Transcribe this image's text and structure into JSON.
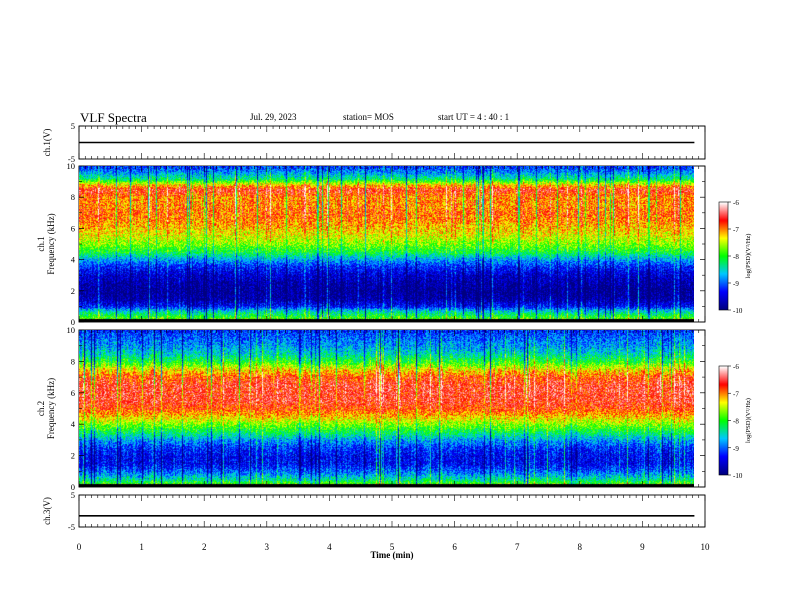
{
  "header": {
    "title": "VLF Spectra",
    "date": "Jul. 29, 2023",
    "station": "station= MOS",
    "start_ut": "start UT =  4 : 40 : 1"
  },
  "colors": {
    "scale": [
      "#000080",
      "#0000ff",
      "#00c8ff",
      "#00ff00",
      "#ffff00",
      "#ff0000",
      "#ffffff"
    ]
  },
  "chart_data": [
    {
      "type": "line",
      "panel": "ch1-voltage",
      "ylabel": "ch.1(V)",
      "ylim": [
        -5,
        5
      ],
      "y_ticks": [
        "5",
        "-5"
      ],
      "xlim": [
        0,
        10
      ],
      "series": [
        {
          "x": [
            0,
            9.83
          ],
          "y": [
            0,
            0
          ]
        }
      ]
    },
    {
      "type": "heatmap",
      "panel": "ch1-spectrogram",
      "ylabel": "ch.1\nFrequency (kHz)",
      "ylim": [
        0,
        10
      ],
      "y_ticks": [
        "0",
        "2",
        "4",
        "6",
        "8",
        "10"
      ],
      "xlim": [
        0,
        10
      ],
      "colorbar": {
        "label": "log(PSD)(V²/Hz)",
        "range": [
          -10,
          -6
        ],
        "ticks": [
          "-6",
          "-7",
          "-8",
          "-9",
          "-10"
        ]
      },
      "profile": {
        "freq_khz": [
          0.1,
          0.5,
          0.8,
          1.0,
          1.5,
          2.0,
          2.5,
          3.0,
          3.5,
          4.0,
          4.5,
          5.0,
          5.5,
          6.0,
          6.5,
          7.0,
          7.5,
          8.0,
          8.5,
          8.8,
          9.2,
          9.6,
          10.0
        ],
        "log_psd": [
          -7.6,
          -8.2,
          -8.7,
          -9.3,
          -9.8,
          -9.9,
          -9.8,
          -9.6,
          -9.3,
          -8.8,
          -8.1,
          -7.7,
          -7.4,
          -7.2,
          -7.0,
          -6.9,
          -7.0,
          -7.0,
          -6.6,
          -7.2,
          -8.3,
          -8.8,
          -9.2
        ]
      }
    },
    {
      "type": "heatmap",
      "panel": "ch2-spectrogram",
      "ylabel": "ch.2\nFrequency (kHz)",
      "ylim": [
        0,
        10
      ],
      "y_ticks": [
        "0",
        "2",
        "4",
        "6",
        "8",
        "10"
      ],
      "xlim": [
        0,
        10
      ],
      "colorbar": {
        "label": "log(PSD)(V²/Hz)",
        "range": [
          -10,
          -6
        ],
        "ticks": [
          "-6",
          "-7",
          "-8",
          "-9",
          "-10"
        ]
      },
      "profile": {
        "freq_khz": [
          0.1,
          0.5,
          1.0,
          1.5,
          2.0,
          2.5,
          3.0,
          3.5,
          4.0,
          4.5,
          5.0,
          5.5,
          6.0,
          6.5,
          7.0,
          7.5,
          8.0,
          8.5,
          9.0,
          9.5,
          10.0
        ],
        "log_psd": [
          -7.6,
          -8.4,
          -9.0,
          -9.4,
          -9.4,
          -9.2,
          -8.8,
          -8.2,
          -7.7,
          -7.2,
          -6.8,
          -6.6,
          -6.6,
          -6.6,
          -6.8,
          -7.3,
          -8.0,
          -8.5,
          -8.8,
          -9.0,
          -9.2
        ]
      }
    },
    {
      "type": "line",
      "panel": "ch3-voltage",
      "ylabel": "ch.3(V)",
      "ylim": [
        -5,
        5
      ],
      "y_ticks": [
        "5",
        "-5"
      ],
      "xlim": [
        0,
        10
      ],
      "xlabel": "Time (min)",
      "x_ticks": [
        "0",
        "1",
        "2",
        "3",
        "4",
        "5",
        "6",
        "7",
        "8",
        "9",
        "10"
      ],
      "series": [
        {
          "x": [
            0,
            9.83
          ],
          "y": [
            -1.5,
            -1.5
          ]
        }
      ]
    }
  ]
}
